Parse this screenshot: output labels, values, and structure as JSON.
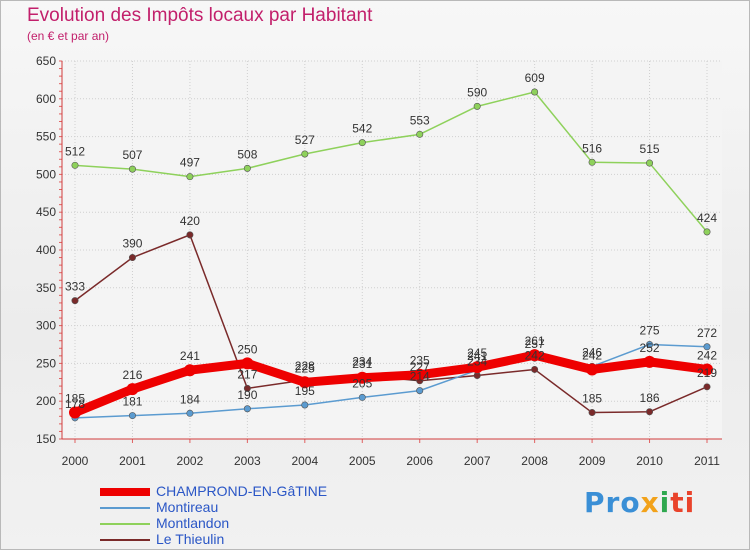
{
  "chart_data": {
    "type": "line",
    "title": "Evolution des Impôts locaux par Habitant",
    "subtitle": "(en € et par an)",
    "xlabel": "",
    "ylabel": "",
    "ylim": [
      150,
      650
    ],
    "yticks": [
      150,
      200,
      250,
      300,
      350,
      400,
      450,
      500,
      550,
      600,
      650
    ],
    "grid": true,
    "legend_position": "bottom-left",
    "categories": [
      "2000",
      "2001",
      "2002",
      "2003",
      "2004",
      "2005",
      "2006",
      "2007",
      "2008",
      "2009",
      "2010",
      "2011"
    ],
    "series": [
      {
        "name": "Montlandon",
        "color": "#8ed15b",
        "values": [
          512,
          507,
          497,
          508,
          527,
          542,
          553,
          590,
          609,
          516,
          515,
          424
        ]
      },
      {
        "name": "Le Thieulin",
        "color": "#7a2a2a",
        "values": [
          333,
          390,
          420,
          217,
          228,
          234,
          227,
          234,
          242,
          185,
          186,
          219
        ]
      },
      {
        "name": "Montireau",
        "color": "#5b9bd0",
        "values": [
          178,
          181,
          184,
          190,
          195,
          205,
          214,
          241,
          257,
          246,
          275,
          272
        ]
      },
      {
        "name": "CHAMPROND-EN-GâTINE",
        "color": "#ee0000",
        "values": [
          185,
          216,
          241,
          250,
          225,
          231,
          235,
          245,
          261,
          242,
          252,
          242
        ]
      }
    ]
  },
  "legend": {
    "items": [
      {
        "label": "CHAMPROND-EN-GâTINE",
        "color": "#ee0000"
      },
      {
        "label": "Montireau",
        "color": "#5b9bd0"
      },
      {
        "label": "Montlandon",
        "color": "#8ed15b"
      },
      {
        "label": "Le Thieulin",
        "color": "#7a2a2a"
      }
    ]
  },
  "logo": {
    "p1": "Pro",
    "p2": "x",
    "p3": "i",
    "p4": "ti"
  }
}
